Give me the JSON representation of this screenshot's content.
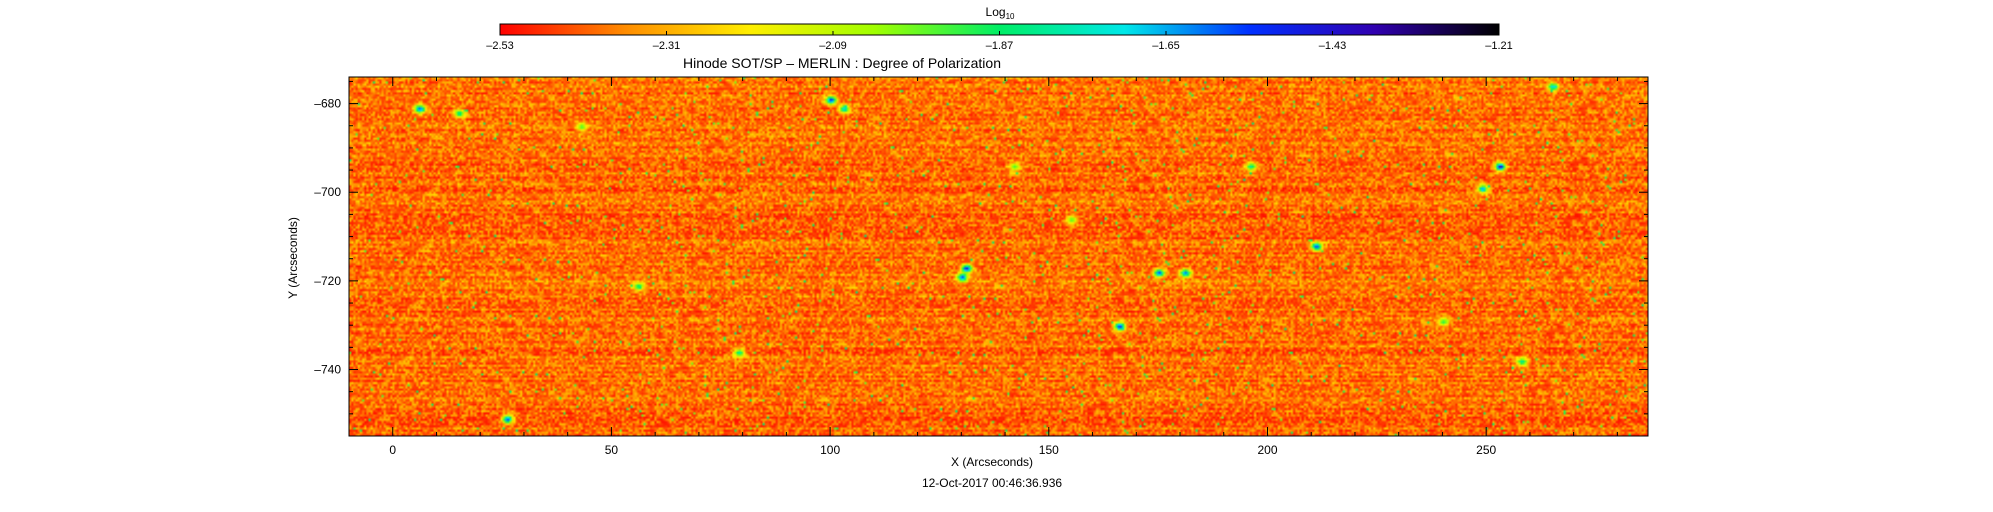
{
  "chart_data": {
    "type": "heatmap",
    "title": "Hinode SOT/SP – MERLIN : Degree of Polarization",
    "subtitle": "12-Oct-2017 00:46:36.936",
    "xlabel": "X (Arcseconds)",
    "ylabel": "Y (Arcseconds)",
    "xlim": [
      -10,
      287
    ],
    "ylim": [
      -755,
      -674
    ],
    "x_ticks": [
      0,
      50,
      100,
      150,
      200,
      250
    ],
    "y_ticks": [
      -680,
      -700,
      -720,
      -740
    ],
    "x_tick_labels": [
      "0",
      "50",
      "100",
      "150",
      "200",
      "250"
    ],
    "y_tick_labels": [
      "–680",
      "–700",
      "–720",
      "–740"
    ],
    "colorbar": {
      "label_main": "Log",
      "label_sub": "10",
      "range": [
        -2.53,
        -1.21
      ],
      "ticks": [
        -2.53,
        -2.31,
        -2.09,
        -1.87,
        -1.65,
        -1.43,
        -1.21
      ],
      "tick_labels": [
        "–2.53",
        "–2.31",
        "–2.09",
        "–1.87",
        "–1.65",
        "–1.43",
        "–1.21"
      ],
      "colors": [
        "#ff0000",
        "#ff8c00",
        "#ffee00",
        "#a0ff00",
        "#00ee66",
        "#00e8e8",
        "#0030ff",
        "#3000b0",
        "#000000"
      ]
    },
    "background_range": [
      -2.53,
      -2.15
    ],
    "features": [
      {
        "x": 6,
        "y": -681,
        "v": -1.55
      },
      {
        "x": 15,
        "y": -682,
        "v": -1.8
      },
      {
        "x": 26,
        "y": -751,
        "v": -1.55
      },
      {
        "x": 56,
        "y": -721,
        "v": -1.85
      },
      {
        "x": 100,
        "y": -679,
        "v": -1.5
      },
      {
        "x": 103,
        "y": -681,
        "v": -1.7
      },
      {
        "x": 131,
        "y": -717,
        "v": -1.45
      },
      {
        "x": 130,
        "y": -719,
        "v": -1.55
      },
      {
        "x": 79,
        "y": -736,
        "v": -1.8
      },
      {
        "x": 166,
        "y": -730,
        "v": -1.5
      },
      {
        "x": 175,
        "y": -718,
        "v": -1.55
      },
      {
        "x": 181,
        "y": -718,
        "v": -1.6
      },
      {
        "x": 211,
        "y": -712,
        "v": -1.55
      },
      {
        "x": 253,
        "y": -694,
        "v": -1.4
      },
      {
        "x": 249,
        "y": -699,
        "v": -1.65
      },
      {
        "x": 265,
        "y": -676,
        "v": -1.7
      },
      {
        "x": 196,
        "y": -694,
        "v": -1.8
      },
      {
        "x": 258,
        "y": -738,
        "v": -1.8
      },
      {
        "x": 240,
        "y": -729,
        "v": -1.9
      },
      {
        "x": 43,
        "y": -685,
        "v": -1.95
      },
      {
        "x": 142,
        "y": -694,
        "v": -1.95
      },
      {
        "x": 155,
        "y": -706,
        "v": -1.95
      }
    ]
  }
}
